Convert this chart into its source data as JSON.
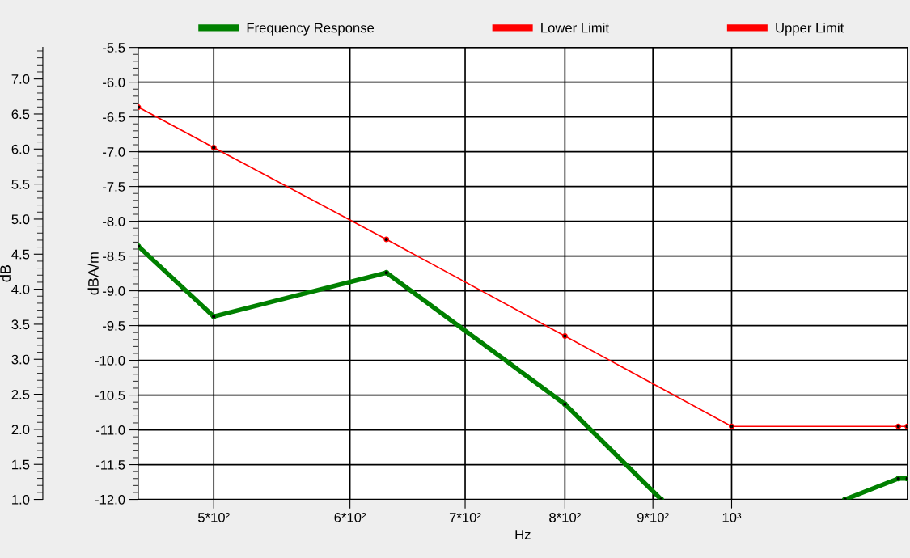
{
  "chart_data": {
    "type": "line",
    "xlabel": "Hz",
    "ylabel": "dBA/m",
    "y2label": "dB",
    "log": "x",
    "xlim": [
      452,
      1265
    ],
    "xticks": [
      {
        "value": 500,
        "label": "5*10²"
      },
      {
        "value": 600,
        "label": "6*10²"
      },
      {
        "value": 700,
        "label": "7*10²"
      },
      {
        "value": 800,
        "label": "8*10²"
      },
      {
        "value": 900,
        "label": "9*10²"
      },
      {
        "value": 1000,
        "label": "10³"
      }
    ],
    "ylim": [
      -12.0,
      -5.5
    ],
    "yticks": [
      {
        "value": -12.0,
        "label": "-12.0"
      },
      {
        "value": -11.5,
        "label": "-11.5"
      },
      {
        "value": -11.0,
        "label": "-11.0"
      },
      {
        "value": -10.5,
        "label": "-10.5"
      },
      {
        "value": -10.0,
        "label": "-10.0"
      },
      {
        "value": -9.5,
        "label": "-9.5"
      },
      {
        "value": -9.0,
        "label": "-9.0"
      },
      {
        "value": -8.5,
        "label": "-8.5"
      },
      {
        "value": -8.0,
        "label": "-8.0"
      },
      {
        "value": -7.5,
        "label": "-7.5"
      },
      {
        "value": -7.0,
        "label": "-7.0"
      },
      {
        "value": -6.5,
        "label": "-6.5"
      },
      {
        "value": -6.0,
        "label": "-6.0"
      },
      {
        "value": -5.5,
        "label": "-5.5"
      }
    ],
    "y2lim": [
      1.0,
      7.45
    ],
    "y2ticks": [
      {
        "value": 1.0,
        "label": "1.0"
      },
      {
        "value": 1.5,
        "label": "1.5"
      },
      {
        "value": 2.0,
        "label": "2.0"
      },
      {
        "value": 2.5,
        "label": "2.5"
      },
      {
        "value": 3.0,
        "label": "3.0"
      },
      {
        "value": 3.5,
        "label": "3.5"
      },
      {
        "value": 4.0,
        "label": "4.0"
      },
      {
        "value": 4.5,
        "label": "4.5"
      },
      {
        "value": 5.0,
        "label": "5.0"
      },
      {
        "value": 5.5,
        "label": "5.5"
      },
      {
        "value": 6.0,
        "label": "6.0"
      },
      {
        "value": 6.5,
        "label": "6.5"
      },
      {
        "value": 7.0,
        "label": "7.0"
      }
    ],
    "grid": true,
    "legend": "top",
    "marker": "circle",
    "series": [
      {
        "name": "Frequency Response",
        "color": "#008000",
        "x": [
          452,
          500,
          630,
          800,
          910,
          1000,
          1164,
          1250,
          1265
        ],
        "values": [
          -8.36,
          -9.37,
          -8.74,
          -10.63,
          -12.0,
          null,
          -12.0,
          -11.7,
          -11.7
        ]
      },
      {
        "name": "Lower Limit",
        "color": "#ff0000"
      },
      {
        "name": "Upper Limit",
        "color": "#ff0000",
        "x": [
          452,
          500,
          630,
          800,
          1000,
          1250,
          1265
        ],
        "values": [
          -6.36,
          -6.94,
          -8.26,
          -9.65,
          -10.95,
          -10.95,
          -10.95
        ]
      }
    ]
  }
}
